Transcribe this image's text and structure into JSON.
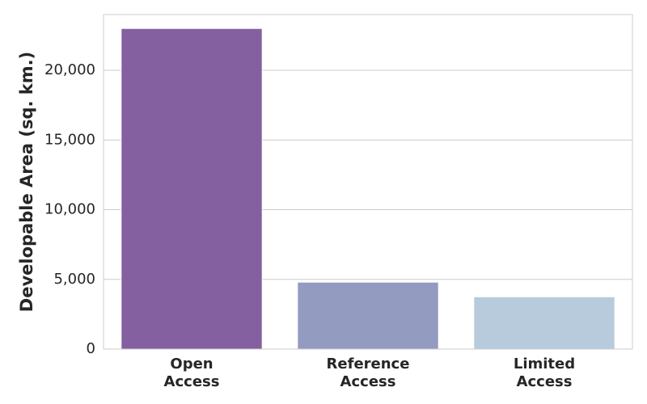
{
  "chart_data": {
    "type": "bar",
    "title": "",
    "xlabel": "",
    "ylabel": "Developable Area (sq. km.)",
    "categories": [
      [
        "Open",
        "Access"
      ],
      [
        "Reference",
        "Access"
      ],
      [
        "Limited",
        "Access"
      ]
    ],
    "values": [
      23000,
      4800,
      3750
    ],
    "ylim": [
      0,
      24000
    ],
    "yticks": [
      0,
      5000,
      10000,
      15000,
      20000
    ],
    "ytick_labels": [
      "0",
      "5,000",
      "10,000",
      "15,000",
      "20,000"
    ],
    "grid": true,
    "legend": "none",
    "colors": [
      "#8560a0",
      "#939bc1",
      "#b8cbdd"
    ]
  }
}
